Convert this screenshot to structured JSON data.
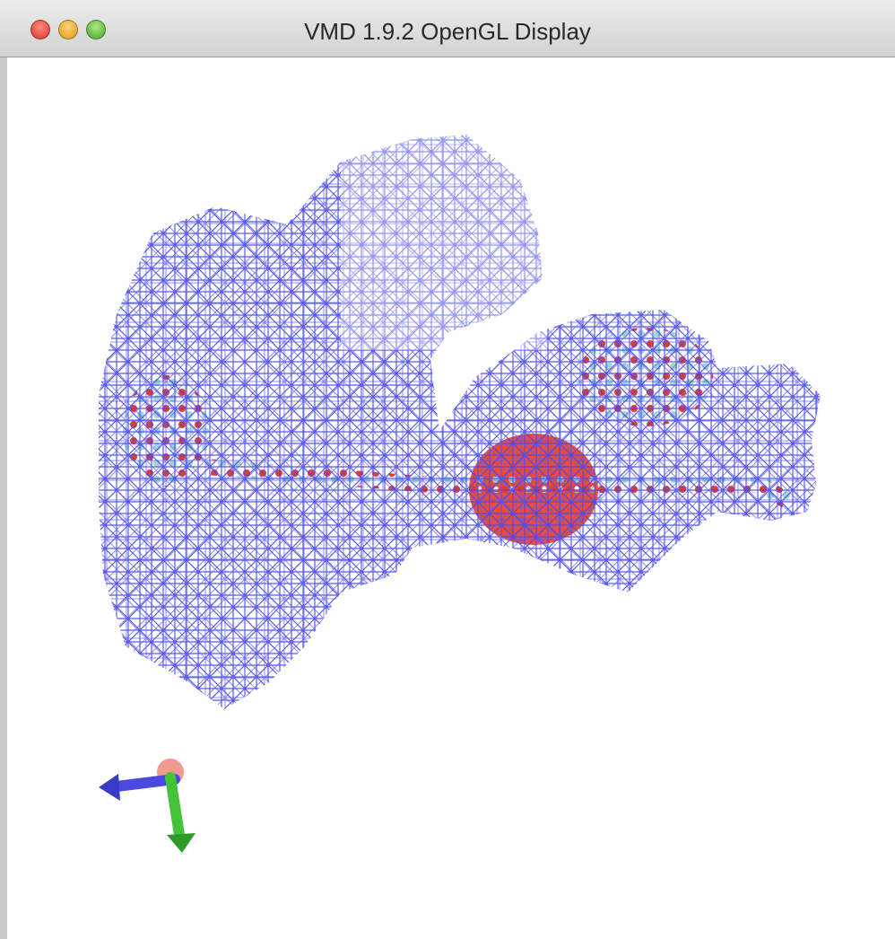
{
  "window": {
    "title": "VMD 1.9.2 OpenGL Display"
  }
}
